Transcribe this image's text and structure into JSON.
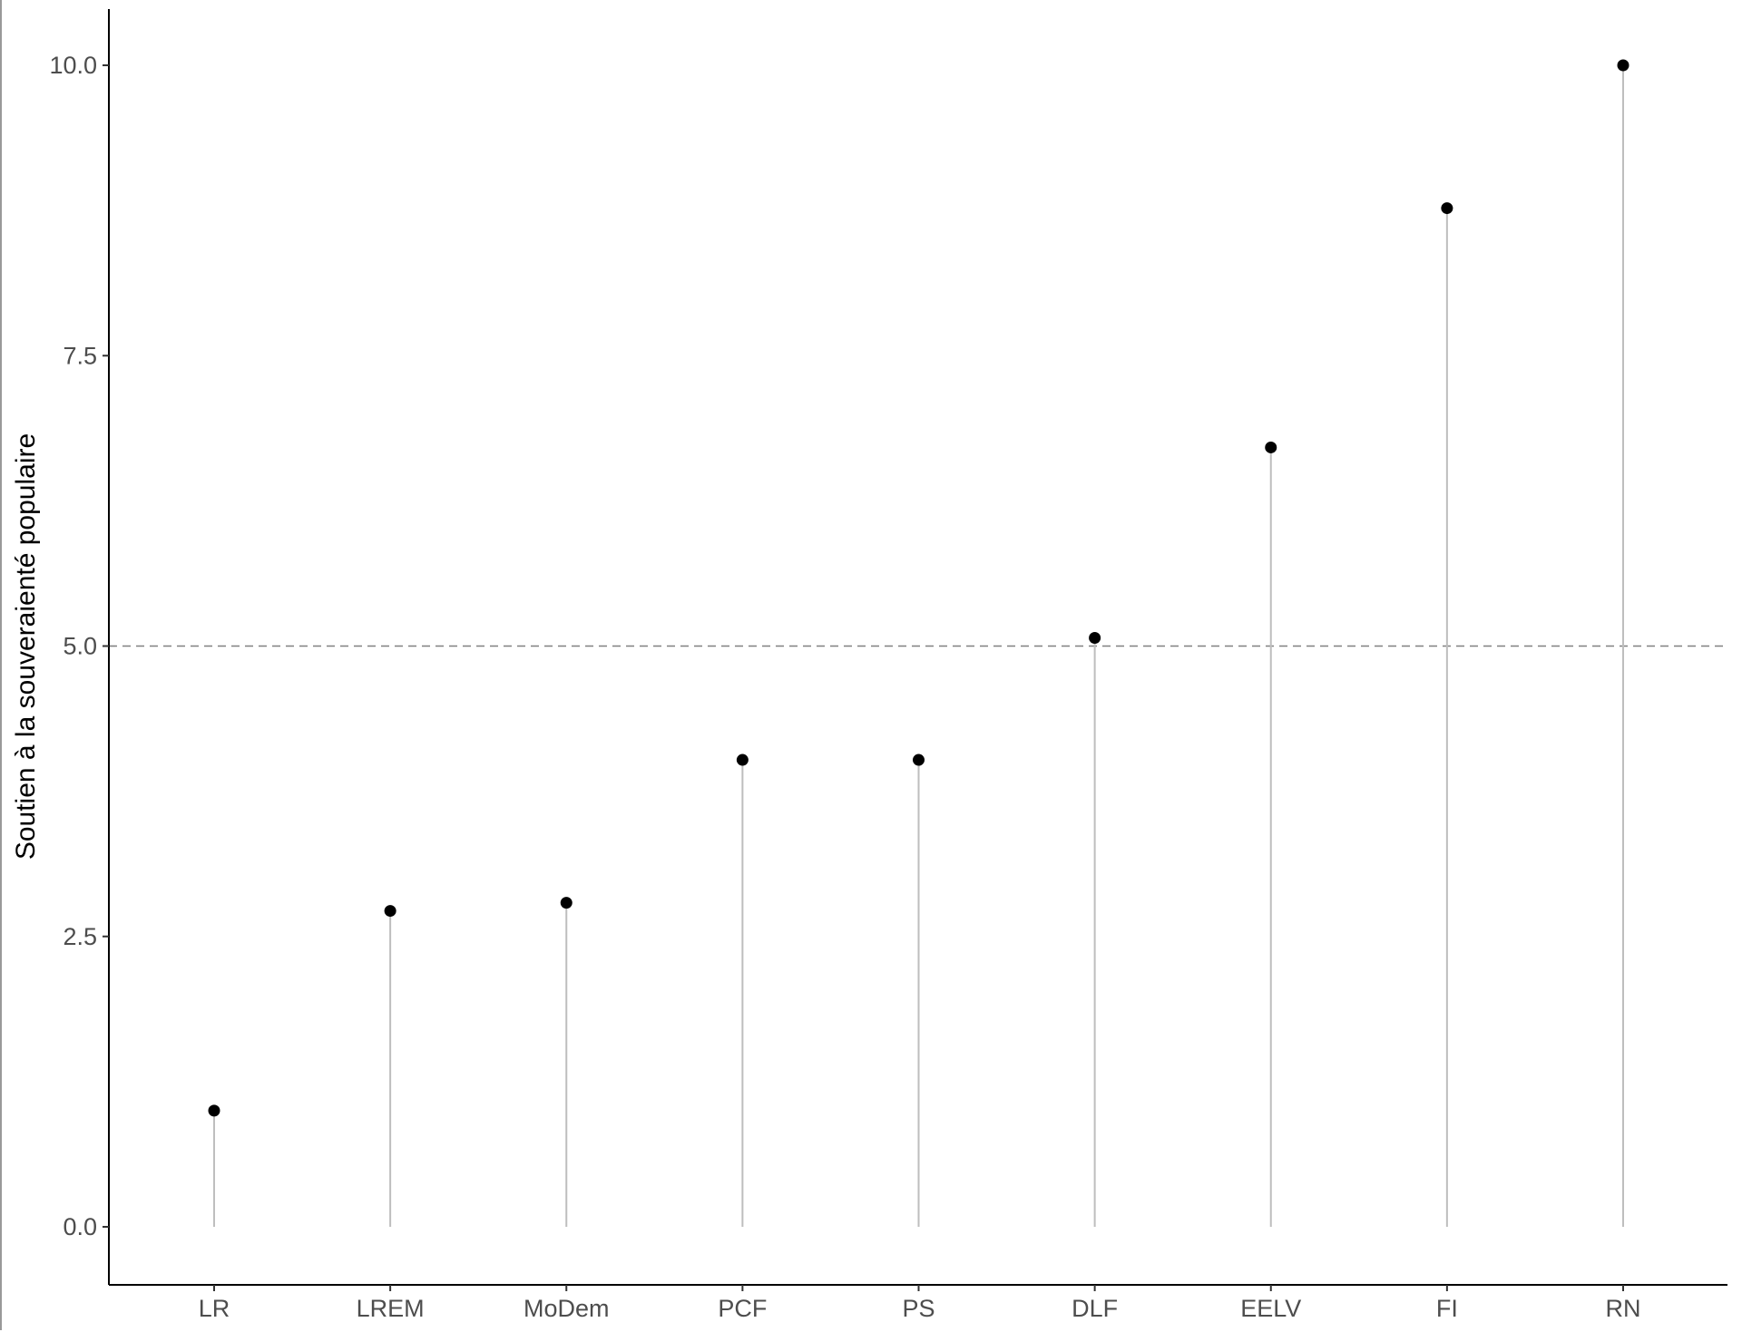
{
  "chart_data": {
    "type": "lollipop",
    "title": "",
    "xlabel": "",
    "ylabel": "Soutien à la souveraienté populaire",
    "categories": [
      "LR",
      "LREM",
      "MoDem",
      "PCF",
      "PS",
      "DLF",
      "EELV",
      "FI",
      "RN"
    ],
    "values": [
      1.0,
      2.72,
      2.79,
      4.02,
      4.02,
      5.07,
      6.71,
      8.77,
      10.0
    ],
    "ylim": [
      -0.5,
      10.5
    ],
    "yticks": [
      0,
      2.5,
      5,
      7.5,
      10
    ],
    "ytick_labels": [
      "0.0",
      "2.5",
      "5.0",
      "7.5",
      "10.0"
    ],
    "reference_line": {
      "y": 5.0,
      "style": "dashed",
      "color": "#808080"
    },
    "point_color": "#000000",
    "stem_color": "#bebebe",
    "grid": false,
    "legend": "none"
  }
}
